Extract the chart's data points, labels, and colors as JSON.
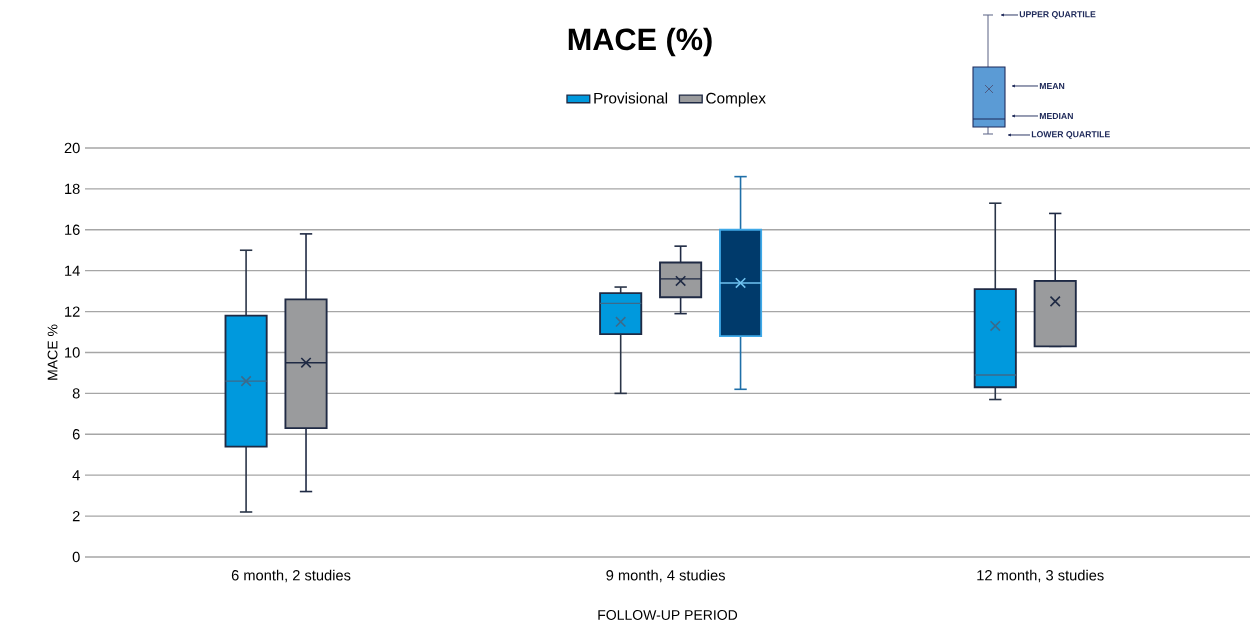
{
  "chart_data": {
    "type": "box",
    "title": "MACE (%)",
    "xlabel": "FOLLOW-UP PERIOD",
    "ylabel": "MACE %",
    "categories": [
      "6 month, 2 studies",
      "9 month, 4 studies",
      "12 month, 3 studies"
    ],
    "series": [
      {
        "name": "Provisional",
        "color": "#0099dd",
        "boxes": [
          {
            "low": 2.2,
            "q1": 5.4,
            "median": 8.6,
            "q3": 11.8,
            "high": 15.0,
            "mean": 8.6
          },
          {
            "low": 8.0,
            "q1": 10.9,
            "median": 12.4,
            "q3": 12.9,
            "high": 13.2,
            "mean": 11.5
          },
          {
            "low": 7.7,
            "q1": 8.3,
            "median": 8.9,
            "q3": 13.1,
            "high": 17.3,
            "mean": 11.3
          }
        ]
      },
      {
        "name": "Complex",
        "color": "#9a9b9d",
        "boxes": [
          {
            "low": 3.2,
            "q1": 6.3,
            "median": 9.5,
            "q3": 12.6,
            "high": 15.8,
            "mean": 9.5
          },
          {
            "low": 11.9,
            "q1": 12.7,
            "median": 13.6,
            "q3": 14.4,
            "high": 15.2,
            "mean": 13.5
          },
          {
            "low": 10.3,
            "q1": 10.3,
            "median": 13.5,
            "q3": 13.5,
            "high": 16.8,
            "mean": 12.5
          }
        ]
      },
      {
        "color": "#003a6b",
        "boxes": [
          null,
          {
            "low": 8.2,
            "q1": 10.8,
            "median": 13.4,
            "q3": 16.0,
            "high": 18.6,
            "mean": 13.4
          },
          null
        ]
      }
    ],
    "ylim": [
      0,
      20
    ],
    "yticks": [
      0,
      2,
      4,
      6,
      8,
      10,
      12,
      14,
      16,
      18,
      20
    ],
    "grid": "y",
    "legend": "top",
    "annotations": [
      "UPPER QUARTILE",
      "MEAN",
      "MEDIAN",
      "LOWER QUARTILE"
    ]
  }
}
